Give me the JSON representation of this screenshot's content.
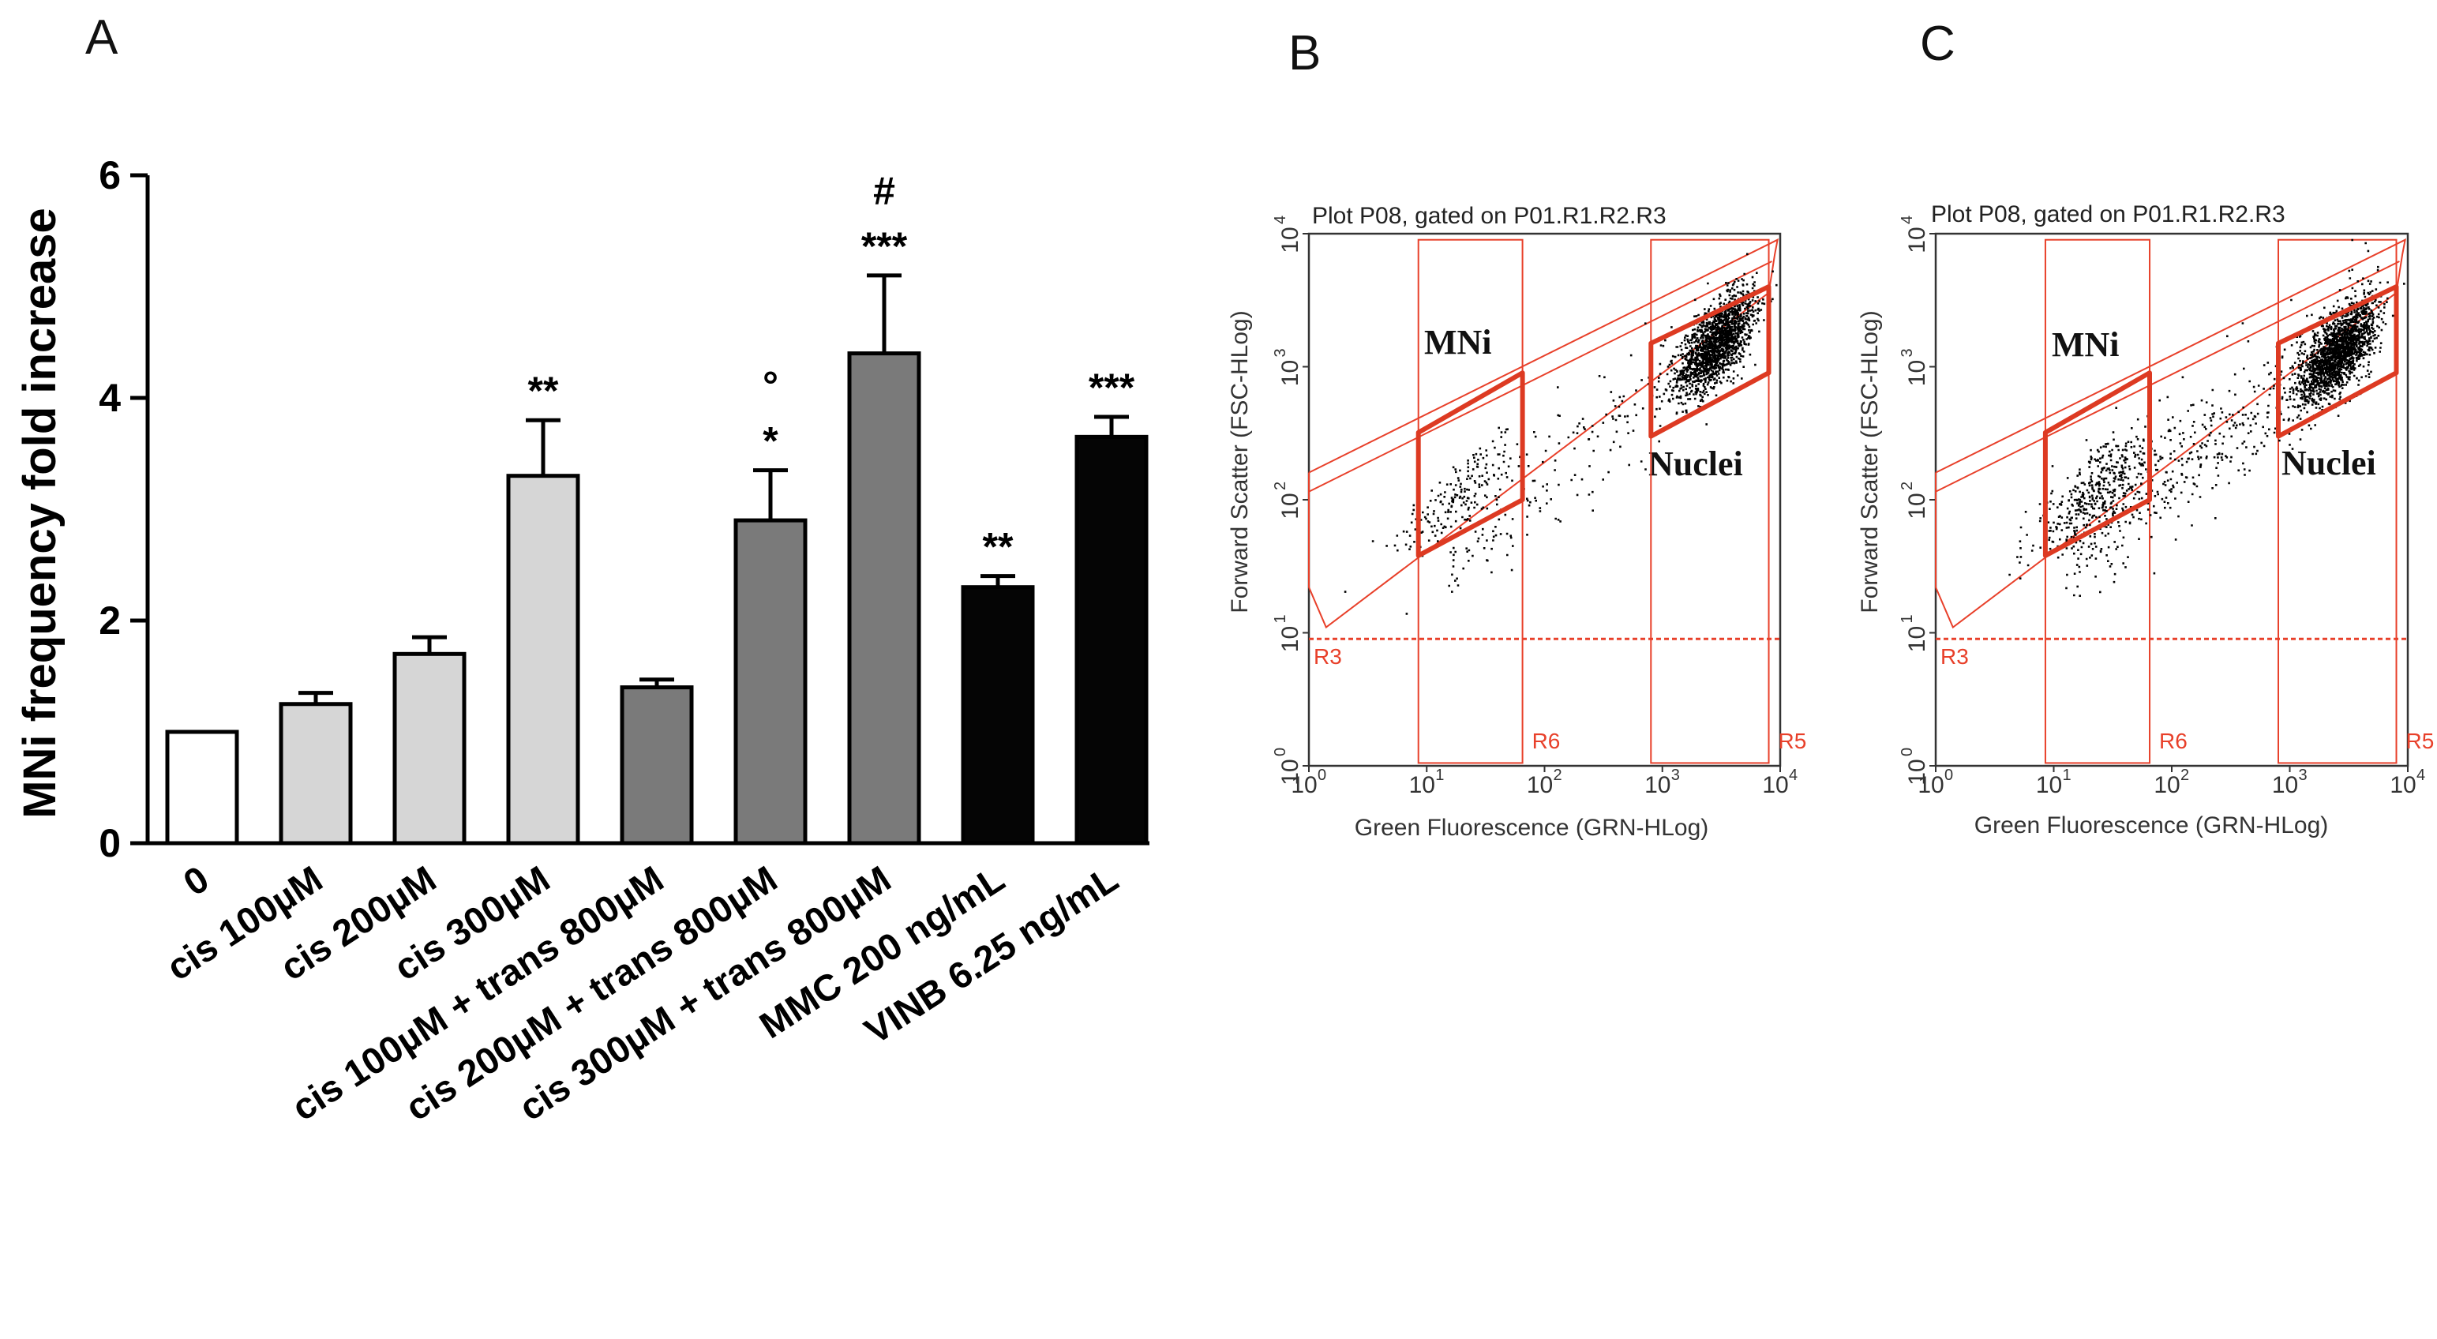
{
  "panels": {
    "A": {
      "letter": "A"
    },
    "B": {
      "letter": "B"
    },
    "C": {
      "letter": "C"
    }
  },
  "colors": {
    "white": "#ffffff",
    "light_gray": "#d6d6d6",
    "dark_gray": "#7a7a7a",
    "black": "#050505",
    "gate_red": "#e8402a",
    "gate_red_bold": "#dd3a22",
    "dots": "#000000"
  },
  "chart_data": [
    {
      "type": "bar",
      "panel": "A",
      "title": "",
      "xlabel": "",
      "ylabel": "MNi frequency fold increase",
      "ylim": [
        0,
        6
      ],
      "yticks": [
        0,
        2,
        4,
        6
      ],
      "ytick_labels": [
        "0",
        "2",
        "4",
        "6"
      ],
      "categories": [
        "0",
        "cis 100µM",
        "cis 200µM",
        "cis 300µM",
        "cis 100µM + trans 800µM",
        "cis 200µM + trans 800µM",
        "cis 300µM + trans 800µM",
        "MMC 200 ng/mL",
        "VINB 6.25 ng/mL"
      ],
      "values": [
        1.0,
        1.25,
        1.7,
        3.3,
        1.4,
        2.9,
        4.4,
        2.3,
        3.65
      ],
      "errors": [
        0.0,
        0.1,
        0.15,
        0.5,
        0.07,
        0.45,
        0.7,
        0.1,
        0.18
      ],
      "fill_groups": [
        "white",
        "light_gray",
        "light_gray",
        "light_gray",
        "dark_gray",
        "dark_gray",
        "dark_gray",
        "black",
        "black"
      ],
      "annotations": [
        "",
        "",
        "",
        "**",
        "",
        "* °",
        "*** #",
        "**",
        "***"
      ],
      "annotation_lines": [
        [],
        [],
        [],
        [
          "**"
        ],
        [],
        [
          "*",
          "°"
        ],
        [
          "***",
          "#"
        ],
        [
          "**"
        ],
        [
          "***"
        ]
      ]
    },
    {
      "type": "scatter",
      "panel": "B",
      "title": "Plot P08, gated on P01.R1.R2.R3",
      "xlabel": "Green Fluorescence (GRN-HLog)",
      "ylabel": "Forward Scatter (FSC-HLog)",
      "xscale": "log",
      "yscale": "log",
      "xlim": [
        1,
        10000
      ],
      "ylim": [
        1,
        10000
      ],
      "tick_base": "10",
      "tick_exponents": [
        "0",
        "1",
        "2",
        "3",
        "4"
      ],
      "gates": [
        {
          "name": "R3",
          "type": "threshold",
          "value": 9
        },
        {
          "name": "R6",
          "type": "range",
          "range": [
            8.5,
            65
          ]
        },
        {
          "name": "R5",
          "type": "range",
          "range": [
            800,
            8000
          ]
        }
      ],
      "regions": [
        {
          "name": "MNi",
          "x": [
            8.5,
            65
          ],
          "lower_y": [
            38,
            100
          ],
          "upper_y": [
            320,
            900
          ]
        },
        {
          "name": "Nuclei",
          "x": [
            800,
            8000
          ],
          "lower_y": [
            300,
            900
          ],
          "upper_y": [
            1500,
            4000
          ]
        }
      ],
      "region_labels": [
        "MNi",
        "Nuclei"
      ],
      "populations": [
        {
          "name": "MNi",
          "events": 180,
          "x_center": 18,
          "y_center": 110
        },
        {
          "name": "Nuclei",
          "events": 1600,
          "x_center": 2800,
          "y_center": 1500
        },
        {
          "name": "scatter",
          "events": 260,
          "x_center": 300,
          "y_center": 350
        }
      ]
    },
    {
      "type": "scatter",
      "panel": "C",
      "title": "Plot P08, gated on P01.R1.R2.R3",
      "xlabel": "Green Fluorescence (GRN-HLog)",
      "ylabel": "Forward Scatter (FSC-HLog)",
      "xscale": "log",
      "yscale": "log",
      "xlim": [
        1,
        10000
      ],
      "ylim": [
        1,
        10000
      ],
      "tick_base": "10",
      "tick_exponents": [
        "0",
        "1",
        "2",
        "3",
        "4"
      ],
      "gates": [
        {
          "name": "R3",
          "type": "threshold",
          "value": 9
        },
        {
          "name": "R6",
          "type": "range",
          "range": [
            8.5,
            65
          ]
        },
        {
          "name": "R5",
          "type": "range",
          "range": [
            800,
            8000
          ]
        }
      ],
      "regions": [
        {
          "name": "MNi",
          "x": [
            8.5,
            65
          ],
          "lower_y": [
            38,
            100
          ],
          "upper_y": [
            320,
            900
          ]
        },
        {
          "name": "Nuclei",
          "x": [
            800,
            8000
          ],
          "lower_y": [
            300,
            900
          ],
          "upper_y": [
            1500,
            4000
          ]
        }
      ],
      "region_labels": [
        "MNi",
        "Nuclei"
      ],
      "populations": [
        {
          "name": "MNi",
          "events": 380,
          "x_center": 22,
          "y_center": 120
        },
        {
          "name": "Nuclei",
          "events": 1700,
          "x_center": 2500,
          "y_center": 1300
        },
        {
          "name": "scatter",
          "events": 550,
          "x_center": 250,
          "y_center": 300
        }
      ]
    }
  ]
}
